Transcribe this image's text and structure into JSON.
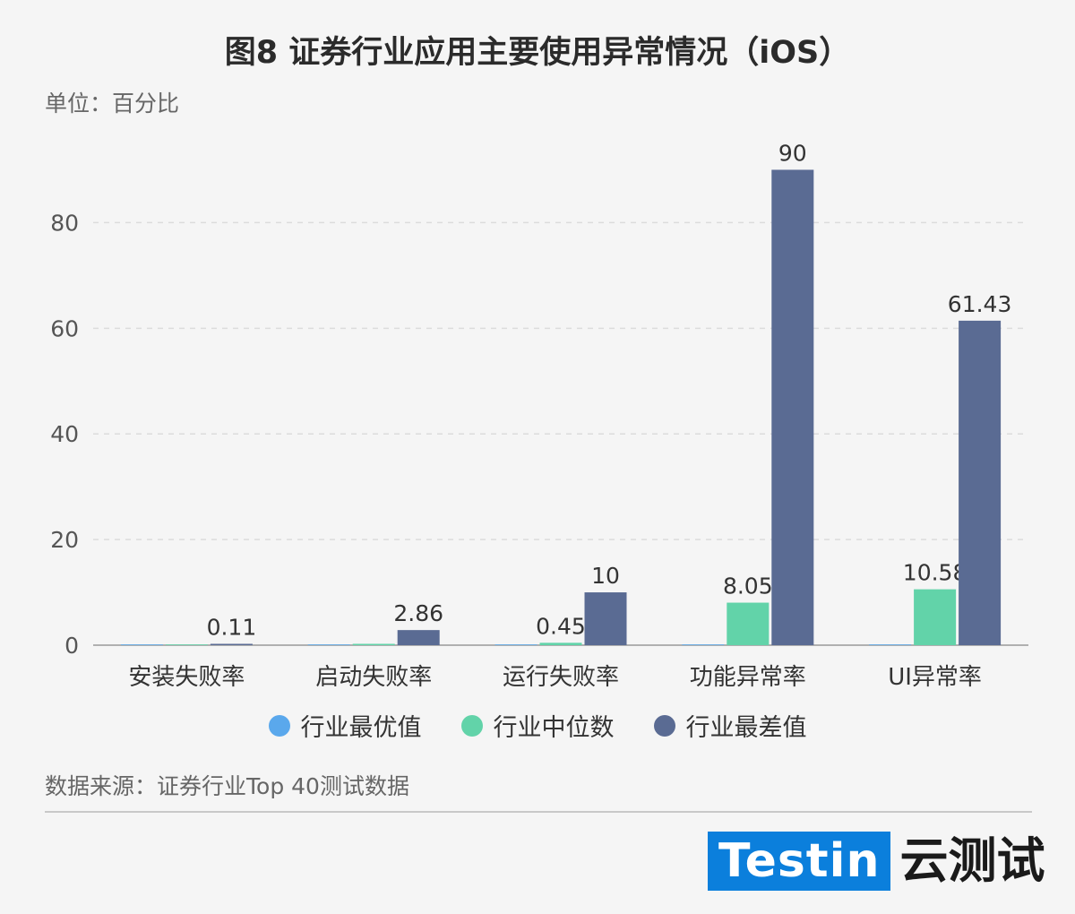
{
  "title": "图8 证券行业应用主要使用异常情况（iOS）",
  "unit_label": "单位：百分比",
  "source": "数据来源：证券行业Top 40测试数据",
  "logo": {
    "brand": "Testin",
    "cn": "云测试"
  },
  "colors": {
    "best": "#5aa8ec",
    "median": "#62d3a9",
    "worst": "#5a6b93",
    "grid": "#dcdcdc",
    "axis": "#999999"
  },
  "chart_data": {
    "type": "bar",
    "title": "图8 证券行业应用主要使用异常情况（iOS）",
    "ylabel": "单位：百分比",
    "xlabel": "",
    "ylim": [
      0,
      95
    ],
    "yticks": [
      0,
      20,
      40,
      60,
      80
    ],
    "grid": true,
    "legend": "bottom",
    "categories": [
      "安装失败率",
      "启动失败率",
      "运行失败率",
      "功能异常率",
      "UI异常率"
    ],
    "series": [
      {
        "name": "行业最优值",
        "values": [
          0,
          0,
          0,
          0,
          0
        ],
        "labels": [
          "",
          "",
          "",
          "",
          ""
        ]
      },
      {
        "name": "行业中位数",
        "values": [
          0,
          0.2,
          0.45,
          8.05,
          10.58
        ],
        "labels": [
          "",
          "",
          "0.45",
          "8.05",
          "10.58"
        ]
      },
      {
        "name": "行业最差值",
        "values": [
          0.11,
          2.86,
          10,
          90,
          61.43
        ],
        "labels": [
          "0.11",
          "2.86",
          "10",
          "90",
          "61.43"
        ]
      }
    ]
  }
}
